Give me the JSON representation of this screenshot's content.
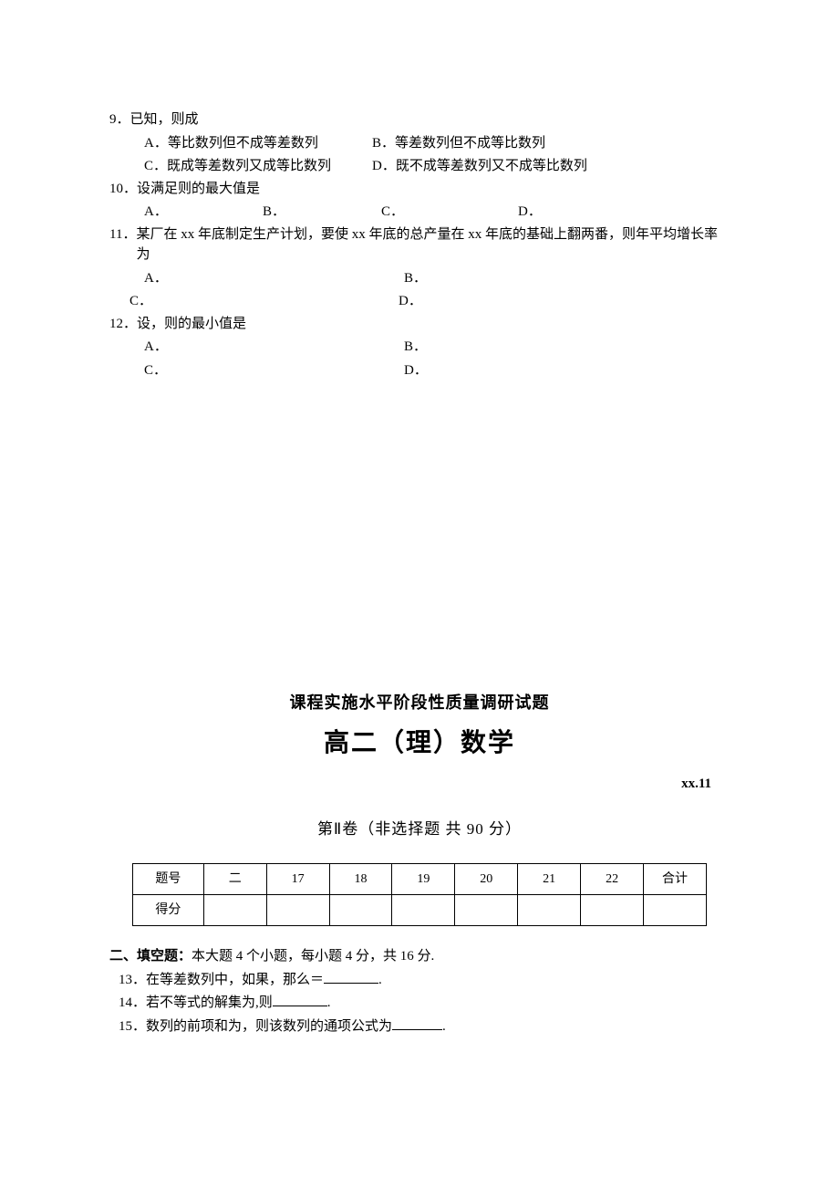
{
  "questions": {
    "q9": {
      "num": "9．",
      "text": "已知，则成",
      "a": "A．等比数列但不成等差数列",
      "b": "B．等差数列但不成等比数列",
      "c": "C．既成等差数列又成等比数列",
      "d": "D．既不成等差数列又不成等比数列"
    },
    "q10": {
      "num": "10．",
      "text": "设满足则的最大值是",
      "a": "A．",
      "b": "B．",
      "c": "C．",
      "d": "D．"
    },
    "q11": {
      "num": "11．",
      "text": "某厂在 xx 年底制定生产计划，要使 xx 年底的总产量在 xx 年底的基础上翻两番，则年平均增长率为",
      "a": "A．",
      "b": "B．",
      "c": "C．",
      "d": "D．"
    },
    "q12": {
      "num": "12．",
      "text": "设，则的最小值是",
      "a": "A．",
      "b": "B．",
      "c": "C．",
      "d": "D．"
    }
  },
  "section2": {
    "subtitle": "课程实施水平阶段性质量调研试题",
    "main_title": "高二（理）数学",
    "date": "xx.11",
    "volume": "第Ⅱ卷（非选择题  共 90 分）"
  },
  "table": {
    "header": [
      "题号",
      "二",
      "17",
      "18",
      "19",
      "20",
      "21",
      "22",
      "合计"
    ],
    "row2_label": "得分"
  },
  "fill": {
    "title_bold": "二、填空题：",
    "title_rest": "本大题 4 个小题，每小题 4 分，共 16 分.",
    "q13": "13．在等差数列中，如果，那么＝",
    "q13_end": ".",
    "q14": "14．若不等式的解集为,则",
    "q14_end": ".",
    "q15": "15．数列的前项和为，则该数列的通项公式为",
    "q15_end": "."
  }
}
